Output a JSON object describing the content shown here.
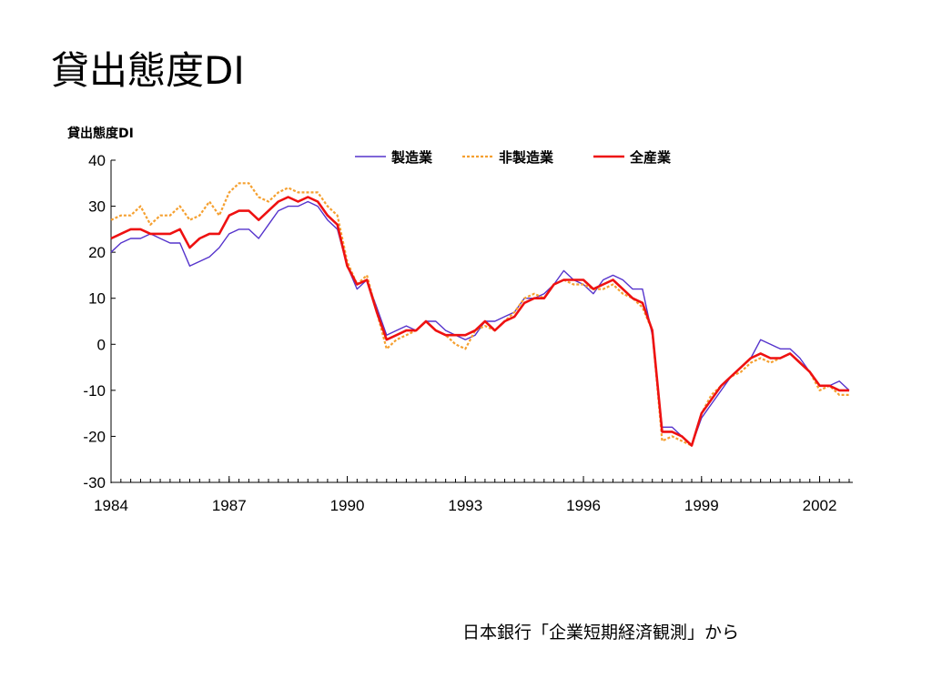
{
  "slide": {
    "title": "貸出態度DI",
    "source_note": "日本銀行「企業短期経済観測」から"
  },
  "chart_data": {
    "type": "line",
    "title": "",
    "ylabel": "貸出態度DI",
    "xlabel": "",
    "ylim": [
      -30,
      40
    ],
    "yticks": [
      40,
      30,
      20,
      10,
      0,
      -10,
      -20,
      -30
    ],
    "ytick_labels": [
      "40",
      "30",
      "20",
      "10",
      "0",
      "-10",
      "-20",
      "-30"
    ],
    "xlim": [
      1984.0,
      2002.75
    ],
    "xticks": [
      1984,
      1987,
      1990,
      1993,
      1996,
      1999,
      2002
    ],
    "xtick_labels": [
      "1984",
      "1987",
      "1990",
      "1993",
      "1996",
      "1999",
      "2002"
    ],
    "x_minor_step": 0.25,
    "grid": false,
    "legend_position": "top-right",
    "series": [
      {
        "name": "製造業",
        "style": "solid-thin",
        "color": "#5533cc",
        "points": [
          [
            1984.0,
            20
          ],
          [
            1984.25,
            22
          ],
          [
            1984.5,
            23
          ],
          [
            1984.75,
            23
          ],
          [
            1985.0,
            24
          ],
          [
            1985.25,
            23
          ],
          [
            1985.5,
            22
          ],
          [
            1985.75,
            22
          ],
          [
            1986.0,
            17
          ],
          [
            1986.25,
            18
          ],
          [
            1986.5,
            19
          ],
          [
            1986.75,
            21
          ],
          [
            1987.0,
            24
          ],
          [
            1987.25,
            25
          ],
          [
            1987.5,
            25
          ],
          [
            1987.75,
            23
          ],
          [
            1988.0,
            26
          ],
          [
            1988.25,
            29
          ],
          [
            1988.5,
            30
          ],
          [
            1988.75,
            30
          ],
          [
            1989.0,
            31
          ],
          [
            1989.25,
            30
          ],
          [
            1989.5,
            27
          ],
          [
            1989.75,
            25
          ],
          [
            1990.0,
            17
          ],
          [
            1990.25,
            12
          ],
          [
            1990.5,
            14
          ],
          [
            1990.75,
            8
          ],
          [
            1991.0,
            2
          ],
          [
            1991.25,
            3
          ],
          [
            1991.5,
            4
          ],
          [
            1991.75,
            3
          ],
          [
            1992.0,
            5
          ],
          [
            1992.25,
            5
          ],
          [
            1992.5,
            3
          ],
          [
            1992.75,
            2
          ],
          [
            1993.0,
            1
          ],
          [
            1993.25,
            2
          ],
          [
            1993.5,
            5
          ],
          [
            1993.75,
            5
          ],
          [
            1994.0,
            6
          ],
          [
            1994.25,
            7
          ],
          [
            1994.5,
            10
          ],
          [
            1994.75,
            10
          ],
          [
            1995.0,
            11
          ],
          [
            1995.25,
            13
          ],
          [
            1995.5,
            16
          ],
          [
            1995.75,
            14
          ],
          [
            1996.0,
            13
          ],
          [
            1996.25,
            11
          ],
          [
            1996.5,
            14
          ],
          [
            1996.75,
            15
          ],
          [
            1997.0,
            14
          ],
          [
            1997.25,
            12
          ],
          [
            1997.5,
            12
          ],
          [
            1997.75,
            2
          ],
          [
            1998.0,
            -18
          ],
          [
            1998.25,
            -18
          ],
          [
            1998.5,
            -20
          ],
          [
            1998.75,
            -22
          ],
          [
            1999.0,
            -16
          ],
          [
            1999.25,
            -13
          ],
          [
            1999.5,
            -10
          ],
          [
            1999.75,
            -7
          ],
          [
            2000.0,
            -5
          ],
          [
            2000.25,
            -3
          ],
          [
            2000.5,
            1
          ],
          [
            2000.75,
            0
          ],
          [
            2001.0,
            -1
          ],
          [
            2001.25,
            -1
          ],
          [
            2001.5,
            -3
          ],
          [
            2001.75,
            -6
          ],
          [
            2002.0,
            -9
          ],
          [
            2002.25,
            -9
          ],
          [
            2002.5,
            -8
          ],
          [
            2002.75,
            -10
          ]
        ]
      },
      {
        "name": "非製造業",
        "style": "dotted",
        "color": "#f5a030",
        "points": [
          [
            1984.0,
            27
          ],
          [
            1984.25,
            28
          ],
          [
            1984.5,
            28
          ],
          [
            1984.75,
            30
          ],
          [
            1985.0,
            26
          ],
          [
            1985.25,
            28
          ],
          [
            1985.5,
            28
          ],
          [
            1985.75,
            30
          ],
          [
            1986.0,
            27
          ],
          [
            1986.25,
            28
          ],
          [
            1986.5,
            31
          ],
          [
            1986.75,
            28
          ],
          [
            1987.0,
            33
          ],
          [
            1987.25,
            35
          ],
          [
            1987.5,
            35
          ],
          [
            1987.75,
            32
          ],
          [
            1988.0,
            31
          ],
          [
            1988.25,
            33
          ],
          [
            1988.5,
            34
          ],
          [
            1988.75,
            33
          ],
          [
            1989.0,
            33
          ],
          [
            1989.25,
            33
          ],
          [
            1989.5,
            30
          ],
          [
            1989.75,
            28
          ],
          [
            1990.0,
            18
          ],
          [
            1990.25,
            13
          ],
          [
            1990.5,
            15
          ],
          [
            1990.75,
            7
          ],
          [
            1991.0,
            -1
          ],
          [
            1991.25,
            1
          ],
          [
            1991.5,
            2
          ],
          [
            1991.75,
            3
          ],
          [
            1992.0,
            5
          ],
          [
            1992.25,
            3
          ],
          [
            1992.5,
            2
          ],
          [
            1992.75,
            0
          ],
          [
            1993.0,
            -1
          ],
          [
            1993.25,
            3
          ],
          [
            1993.5,
            4
          ],
          [
            1993.75,
            3
          ],
          [
            1994.0,
            5
          ],
          [
            1994.25,
            7
          ],
          [
            1994.5,
            10
          ],
          [
            1994.75,
            11
          ],
          [
            1995.0,
            10
          ],
          [
            1995.25,
            13
          ],
          [
            1995.5,
            14
          ],
          [
            1995.75,
            13
          ],
          [
            1996.0,
            13
          ],
          [
            1996.25,
            12
          ],
          [
            1996.5,
            12
          ],
          [
            1996.75,
            13
          ],
          [
            1997.0,
            11
          ],
          [
            1997.25,
            10
          ],
          [
            1997.5,
            8
          ],
          [
            1997.75,
            3
          ],
          [
            1998.0,
            -21
          ],
          [
            1998.25,
            -20
          ],
          [
            1998.5,
            -21
          ],
          [
            1998.75,
            -22
          ],
          [
            1999.0,
            -15
          ],
          [
            1999.25,
            -11
          ],
          [
            1999.5,
            -9
          ],
          [
            1999.75,
            -7
          ],
          [
            2000.0,
            -6
          ],
          [
            2000.25,
            -4
          ],
          [
            2000.5,
            -3
          ],
          [
            2000.75,
            -4
          ],
          [
            2001.0,
            -3
          ],
          [
            2001.25,
            -2
          ],
          [
            2001.5,
            -4
          ],
          [
            2001.75,
            -6
          ],
          [
            2002.0,
            -10
          ],
          [
            2002.25,
            -9
          ],
          [
            2002.5,
            -11
          ],
          [
            2002.75,
            -11
          ]
        ]
      },
      {
        "name": "全産業",
        "style": "solid-thick",
        "color": "#ee1111",
        "points": [
          [
            1984.0,
            23
          ],
          [
            1984.25,
            24
          ],
          [
            1984.5,
            25
          ],
          [
            1984.75,
            25
          ],
          [
            1985.0,
            24
          ],
          [
            1985.25,
            24
          ],
          [
            1985.5,
            24
          ],
          [
            1985.75,
            25
          ],
          [
            1986.0,
            21
          ],
          [
            1986.25,
            23
          ],
          [
            1986.5,
            24
          ],
          [
            1986.75,
            24
          ],
          [
            1987.0,
            28
          ],
          [
            1987.25,
            29
          ],
          [
            1987.5,
            29
          ],
          [
            1987.75,
            27
          ],
          [
            1988.0,
            29
          ],
          [
            1988.25,
            31
          ],
          [
            1988.5,
            32
          ],
          [
            1988.75,
            31
          ],
          [
            1989.0,
            32
          ],
          [
            1989.25,
            31
          ],
          [
            1989.5,
            28
          ],
          [
            1989.75,
            26
          ],
          [
            1990.0,
            17
          ],
          [
            1990.25,
            13
          ],
          [
            1990.5,
            14
          ],
          [
            1990.75,
            7
          ],
          [
            1991.0,
            1
          ],
          [
            1991.25,
            2
          ],
          [
            1991.5,
            3
          ],
          [
            1991.75,
            3
          ],
          [
            1992.0,
            5
          ],
          [
            1992.25,
            3
          ],
          [
            1992.5,
            2
          ],
          [
            1992.75,
            2
          ],
          [
            1993.0,
            2
          ],
          [
            1993.25,
            3
          ],
          [
            1993.5,
            5
          ],
          [
            1993.75,
            3
          ],
          [
            1994.0,
            5
          ],
          [
            1994.25,
            6
          ],
          [
            1994.5,
            9
          ],
          [
            1994.75,
            10
          ],
          [
            1995.0,
            10
          ],
          [
            1995.25,
            13
          ],
          [
            1995.5,
            14
          ],
          [
            1995.75,
            14
          ],
          [
            1996.0,
            14
          ],
          [
            1996.25,
            12
          ],
          [
            1996.5,
            13
          ],
          [
            1996.75,
            14
          ],
          [
            1997.0,
            12
          ],
          [
            1997.25,
            10
          ],
          [
            1997.5,
            9
          ],
          [
            1997.75,
            3
          ],
          [
            1998.0,
            -19
          ],
          [
            1998.25,
            -19
          ],
          [
            1998.5,
            -20
          ],
          [
            1998.75,
            -22
          ],
          [
            1999.0,
            -15
          ],
          [
            1999.25,
            -12
          ],
          [
            1999.5,
            -9
          ],
          [
            1999.75,
            -7
          ],
          [
            2000.0,
            -5
          ],
          [
            2000.25,
            -3
          ],
          [
            2000.5,
            -2
          ],
          [
            2000.75,
            -3
          ],
          [
            2001.0,
            -3
          ],
          [
            2001.25,
            -2
          ],
          [
            2001.5,
            -4
          ],
          [
            2001.75,
            -6
          ],
          [
            2002.0,
            -9
          ],
          [
            2002.25,
            -9
          ],
          [
            2002.5,
            -10
          ],
          [
            2002.75,
            -10
          ]
        ]
      }
    ]
  }
}
